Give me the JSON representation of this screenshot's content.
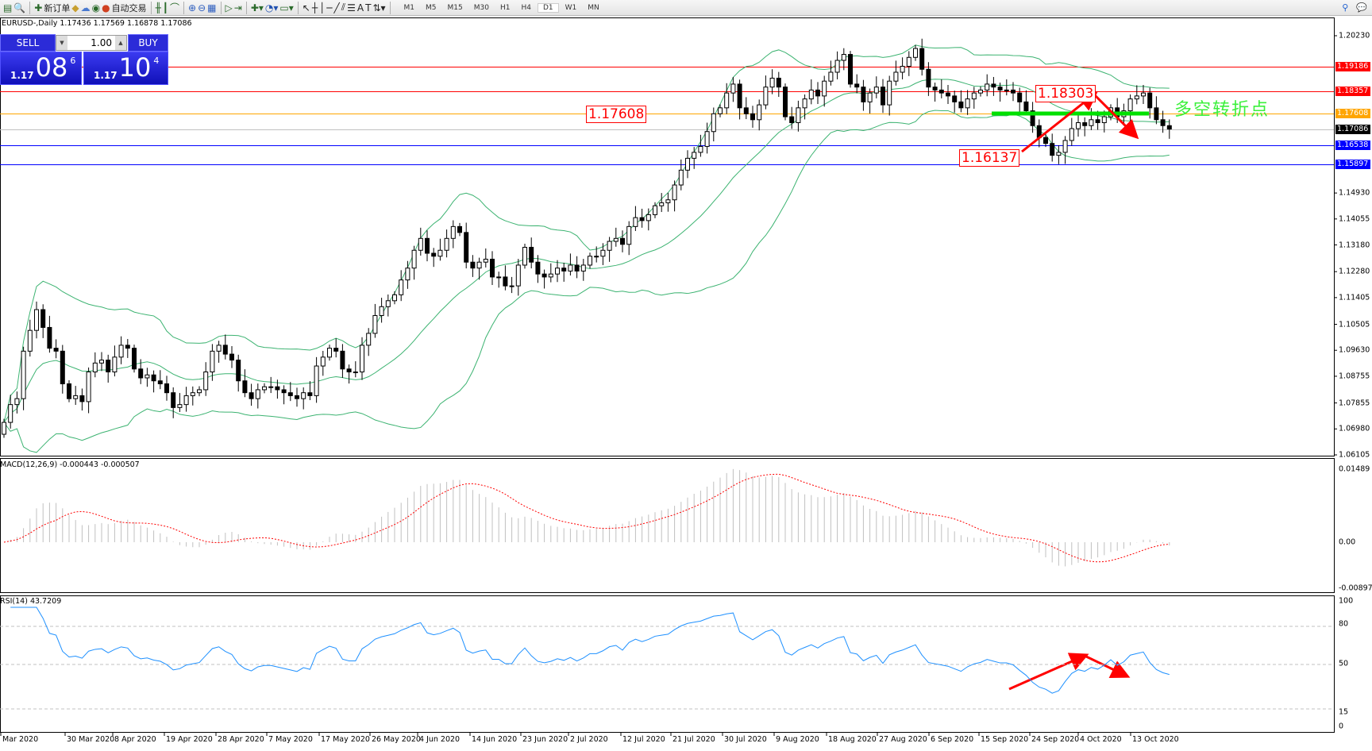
{
  "toolbar": {
    "new_order": "新订单",
    "auto_trading": "自动交易",
    "timeframes": [
      "M1",
      "M5",
      "M15",
      "M30",
      "H1",
      "H4",
      "D1",
      "W1",
      "MN"
    ],
    "active_timeframe": "D1"
  },
  "chart": {
    "symbol_line": "EURUSD-,Daily  1.17436 1.17569 1.16878 1.17086",
    "macd_label": "MACD(12,26,9) -0.000443 -0.000507",
    "rsi_label": "RSI(14) 43.7209",
    "annotation_text": "多空转折点",
    "tags": {
      "t1": "1.17608",
      "t2": "1.18303",
      "t3": "1.16137"
    }
  },
  "trade_panel": {
    "sell": "SELL",
    "buy": "BUY",
    "lot": "1.00",
    "bid": {
      "small": "1.17",
      "big": "08",
      "pip": "6"
    },
    "ask": {
      "small": "1.17",
      "big": "10",
      "pip": "4"
    }
  },
  "price_axis": {
    "ticks": [
      "1.20230",
      "1.14930",
      "1.14055",
      "1.13180",
      "1.12280",
      "1.11405",
      "1.10505",
      "1.09630",
      "1.08755",
      "1.07855",
      "1.06980",
      "1.06105"
    ],
    "levels": [
      {
        "value": "1.19186",
        "color": "#ff0000"
      },
      {
        "value": "1.18357",
        "color": "#ff0000"
      },
      {
        "value": "1.17608",
        "color": "#ffa500"
      },
      {
        "value": "1.17086",
        "color": "#000000",
        "line": "#c0c0c0"
      },
      {
        "value": "1.16538",
        "color": "#0000ff"
      },
      {
        "value": "1.15897",
        "color": "#0000ff"
      }
    ]
  },
  "macd_axis": {
    "top": "0.01489",
    "zero": "0.00",
    "bottom": "-0.008977"
  },
  "rsi_axis": {
    "top": "100",
    "l80": "80",
    "l50": "50",
    "l15": "15",
    "bottom": "0"
  },
  "date_axis": [
    "Mar 2020",
    "30 Mar 2020",
    "8 Apr 2020",
    "19 Apr 2020",
    "28 Apr 2020",
    "7 May 2020",
    "17 May 2020",
    "26 May 2020",
    "4 Jun 2020",
    "14 Jun 2020",
    "23 Jun 2020",
    "2 Jul 2020",
    "12 Jul 2020",
    "21 Jul 2020",
    "30 Jul 2020",
    "9 Aug 2020",
    "18 Aug 2020",
    "27 Aug 2020",
    "6 Sep 2020",
    "15 Sep 2020",
    "24 Sep 2020",
    "4 Oct 2020",
    "13 Oct 2020"
  ],
  "chart_data": {
    "type": "candlestick",
    "symbol": "EURUSD",
    "timeframe": "Daily",
    "ylim": [
      1.06105,
      1.2023
    ],
    "close": [
      1.072,
      1.078,
      1.08,
      1.096,
      1.103,
      1.11,
      1.104,
      1.097,
      1.096,
      1.085,
      1.08,
      1.081,
      1.079,
      1.089,
      1.092,
      1.093,
      1.089,
      1.094,
      1.098,
      1.097,
      1.09,
      1.087,
      1.088,
      1.086,
      1.085,
      1.082,
      1.077,
      1.078,
      1.081,
      1.082,
      1.083,
      1.089,
      1.096,
      1.098,
      1.095,
      1.093,
      1.086,
      1.082,
      1.08,
      1.083,
      1.084,
      1.084,
      1.083,
      1.082,
      1.081,
      1.08,
      1.082,
      1.081,
      1.091,
      1.094,
      1.097,
      1.096,
      1.09,
      1.089,
      1.089,
      1.098,
      1.102,
      1.108,
      1.111,
      1.113,
      1.115,
      1.12,
      1.124,
      1.13,
      1.134,
      1.129,
      1.128,
      1.13,
      1.134,
      1.138,
      1.136,
      1.126,
      1.124,
      1.126,
      1.127,
      1.121,
      1.121,
      1.118,
      1.118,
      1.125,
      1.131,
      1.126,
      1.122,
      1.121,
      1.122,
      1.124,
      1.123,
      1.125,
      1.123,
      1.125,
      1.128,
      1.128,
      1.13,
      1.133,
      1.134,
      1.132,
      1.138,
      1.141,
      1.14,
      1.142,
      1.145,
      1.146,
      1.147,
      1.152,
      1.157,
      1.161,
      1.163,
      1.165,
      1.17,
      1.176,
      1.178,
      1.183,
      1.186,
      1.178,
      1.176,
      1.174,
      1.179,
      1.185,
      1.188,
      1.185,
      1.175,
      1.173,
      1.178,
      1.181,
      1.184,
      1.182,
      1.187,
      1.19,
      1.194,
      1.196,
      1.186,
      1.185,
      1.18,
      1.183,
      1.185,
      1.179,
      1.187,
      1.19,
      1.192,
      1.195,
      1.198,
      1.191,
      1.185,
      1.184,
      1.183,
      1.182,
      1.18,
      1.178,
      1.181,
      1.183,
      1.184,
      1.186,
      1.185,
      1.184,
      1.184,
      1.183,
      1.18,
      1.177,
      1.172,
      1.168,
      1.166,
      1.162,
      1.163,
      1.167,
      1.171,
      1.173,
      1.172,
      1.174,
      1.173,
      1.175,
      1.178,
      1.175,
      1.177,
      1.181,
      1.182,
      1.183,
      1.178,
      1.174,
      1.172,
      1.17086
    ],
    "indicators": [
      "Bollinger Bands(20,2)",
      "MACD(12,26,9)",
      "RSI(14)"
    ],
    "rsi_levels": [
      80,
      50,
      15
    ],
    "colors": {
      "bands": "#3cb371",
      "macd_hist": "#c0c0c0",
      "macd_signal": "#ff0000",
      "rsi": "#1e90ff",
      "annotation": "#ff0000",
      "pivot_line": "#00e000"
    }
  }
}
